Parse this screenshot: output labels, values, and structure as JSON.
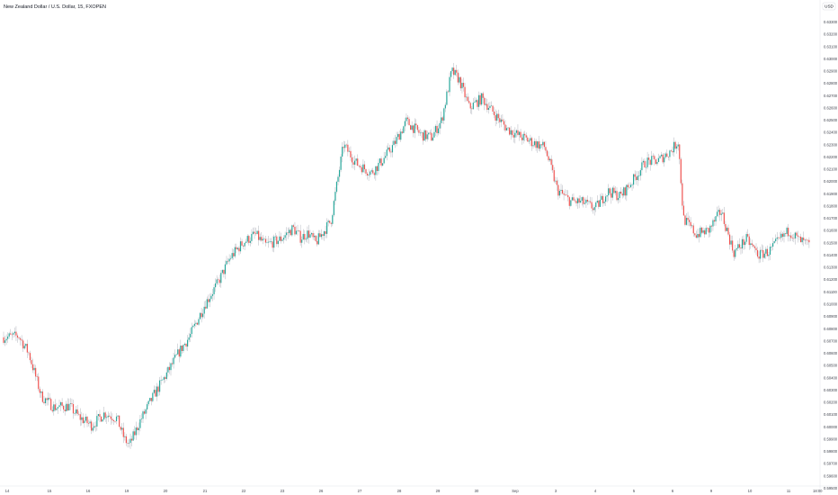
{
  "title": "New Zealand Dollar / U.S. Dollar, 15, FXOPEN",
  "currency": "USD",
  "colors": {
    "up": "#26a69a",
    "down": "#ef5350",
    "wick": "#b2b5be",
    "axis_text": "#434651",
    "divider": "#e0e3eb"
  },
  "chart_data": {
    "type": "candlestick",
    "title": "New Zealand Dollar / U.S. Dollar, 15, FXOPEN",
    "xlabel": "",
    "ylabel": "USD",
    "ylim": [
      0.5945,
      0.6335
    ],
    "grid": false,
    "y_ticks": [
      "0.63300",
      "0.63200",
      "0.63100",
      "0.63000",
      "0.62900",
      "0.62800",
      "0.62700",
      "0.62600",
      "0.62500",
      "0.62400",
      "0.62300",
      "0.62200",
      "0.62100",
      "0.62000",
      "0.61900",
      "0.61800",
      "0.61700",
      "0.61600",
      "0.61500",
      "0.61400",
      "0.61300",
      "0.61200",
      "0.61100",
      "0.61000",
      "0.60900",
      "0.60800",
      "0.60700",
      "0.60600",
      "0.60500",
      "0.60400",
      "0.60300",
      "0.60200",
      "0.60100",
      "0.60000",
      "0.59900",
      "0.59800",
      "0.59700",
      "0.59600",
      "0.59500"
    ],
    "x_ticks": [
      "14",
      "15",
      "16",
      "19",
      "20",
      "21",
      "22",
      "23",
      "26",
      "27",
      "28",
      "29",
      "30",
      "Sep",
      "3",
      "4",
      "5",
      "6",
      "9",
      "10",
      "11",
      "18:00"
    ],
    "close_path": [
      {
        "x": 0.0,
        "close": 0.6073
      },
      {
        "x": 0.6,
        "close": 0.6074
      },
      {
        "x": 1.0,
        "close": 0.606
      },
      {
        "x": 1.5,
        "close": 0.6025
      },
      {
        "x": 2.0,
        "close": 0.6016
      },
      {
        "x": 2.6,
        "close": 0.6017
      },
      {
        "x": 3.0,
        "close": 0.6008
      },
      {
        "x": 3.5,
        "close": 0.6001
      },
      {
        "x": 4.0,
        "close": 0.6011
      },
      {
        "x": 4.5,
        "close": 0.6007
      },
      {
        "x": 4.8,
        "close": 0.599
      },
      {
        "x": 5.0,
        "close": 0.5985
      },
      {
        "x": 5.4,
        "close": 0.6004
      },
      {
        "x": 6.0,
        "close": 0.6027
      },
      {
        "x": 6.5,
        "close": 0.6044
      },
      {
        "x": 7.0,
        "close": 0.6062
      },
      {
        "x": 7.4,
        "close": 0.6074
      },
      {
        "x": 8.0,
        "close": 0.61
      },
      {
        "x": 8.5,
        "close": 0.6117
      },
      {
        "x": 9.0,
        "close": 0.6138
      },
      {
        "x": 9.5,
        "close": 0.615
      },
      {
        "x": 10.0,
        "close": 0.6157
      },
      {
        "x": 10.4,
        "close": 0.6148
      },
      {
        "x": 11.0,
        "close": 0.6153
      },
      {
        "x": 11.5,
        "close": 0.6162
      },
      {
        "x": 11.8,
        "close": 0.6154
      },
      {
        "x": 12.1,
        "close": 0.6158
      },
      {
        "x": 12.4,
        "close": 0.615
      },
      {
        "x": 13.0,
        "close": 0.6168
      },
      {
        "x": 13.5,
        "close": 0.623
      },
      {
        "x": 14.0,
        "close": 0.6215
      },
      {
        "x": 14.6,
        "close": 0.6207
      },
      {
        "x": 15.0,
        "close": 0.6216
      },
      {
        "x": 15.5,
        "close": 0.623
      },
      {
        "x": 16.0,
        "close": 0.6249
      },
      {
        "x": 16.6,
        "close": 0.6238
      },
      {
        "x": 17.0,
        "close": 0.6236
      },
      {
        "x": 17.4,
        "close": 0.625
      },
      {
        "x": 17.8,
        "close": 0.629
      },
      {
        "x": 18.1,
        "close": 0.6283
      },
      {
        "x": 18.5,
        "close": 0.626
      },
      {
        "x": 19.0,
        "close": 0.6268
      },
      {
        "x": 19.5,
        "close": 0.6255
      },
      {
        "x": 20.0,
        "close": 0.6243
      },
      {
        "x": 20.5,
        "close": 0.6237
      },
      {
        "x": 21.0,
        "close": 0.6232
      },
      {
        "x": 21.5,
        "close": 0.6228
      },
      {
        "x": 22.0,
        "close": 0.6193
      },
      {
        "x": 22.5,
        "close": 0.6184
      },
      {
        "x": 23.0,
        "close": 0.6183
      },
      {
        "x": 23.5,
        "close": 0.6178
      },
      {
        "x": 24.0,
        "close": 0.6192
      },
      {
        "x": 24.5,
        "close": 0.6188
      },
      {
        "x": 25.0,
        "close": 0.6201
      },
      {
        "x": 25.5,
        "close": 0.6216
      },
      {
        "x": 26.0,
        "close": 0.6217
      },
      {
        "x": 26.5,
        "close": 0.6225
      },
      {
        "x": 26.8,
        "close": 0.6233
      },
      {
        "x": 27.0,
        "close": 0.617
      },
      {
        "x": 27.5,
        "close": 0.6157
      },
      {
        "x": 28.0,
        "close": 0.616
      },
      {
        "x": 28.5,
        "close": 0.6176
      },
      {
        "x": 29.0,
        "close": 0.6142
      },
      {
        "x": 29.5,
        "close": 0.6153
      },
      {
        "x": 30.0,
        "close": 0.614
      },
      {
        "x": 30.4,
        "close": 0.6143
      },
      {
        "x": 30.8,
        "close": 0.6152
      },
      {
        "x": 31.2,
        "close": 0.616
      },
      {
        "x": 31.6,
        "close": 0.6152
      },
      {
        "x": 32.0,
        "close": 0.6148
      }
    ]
  }
}
